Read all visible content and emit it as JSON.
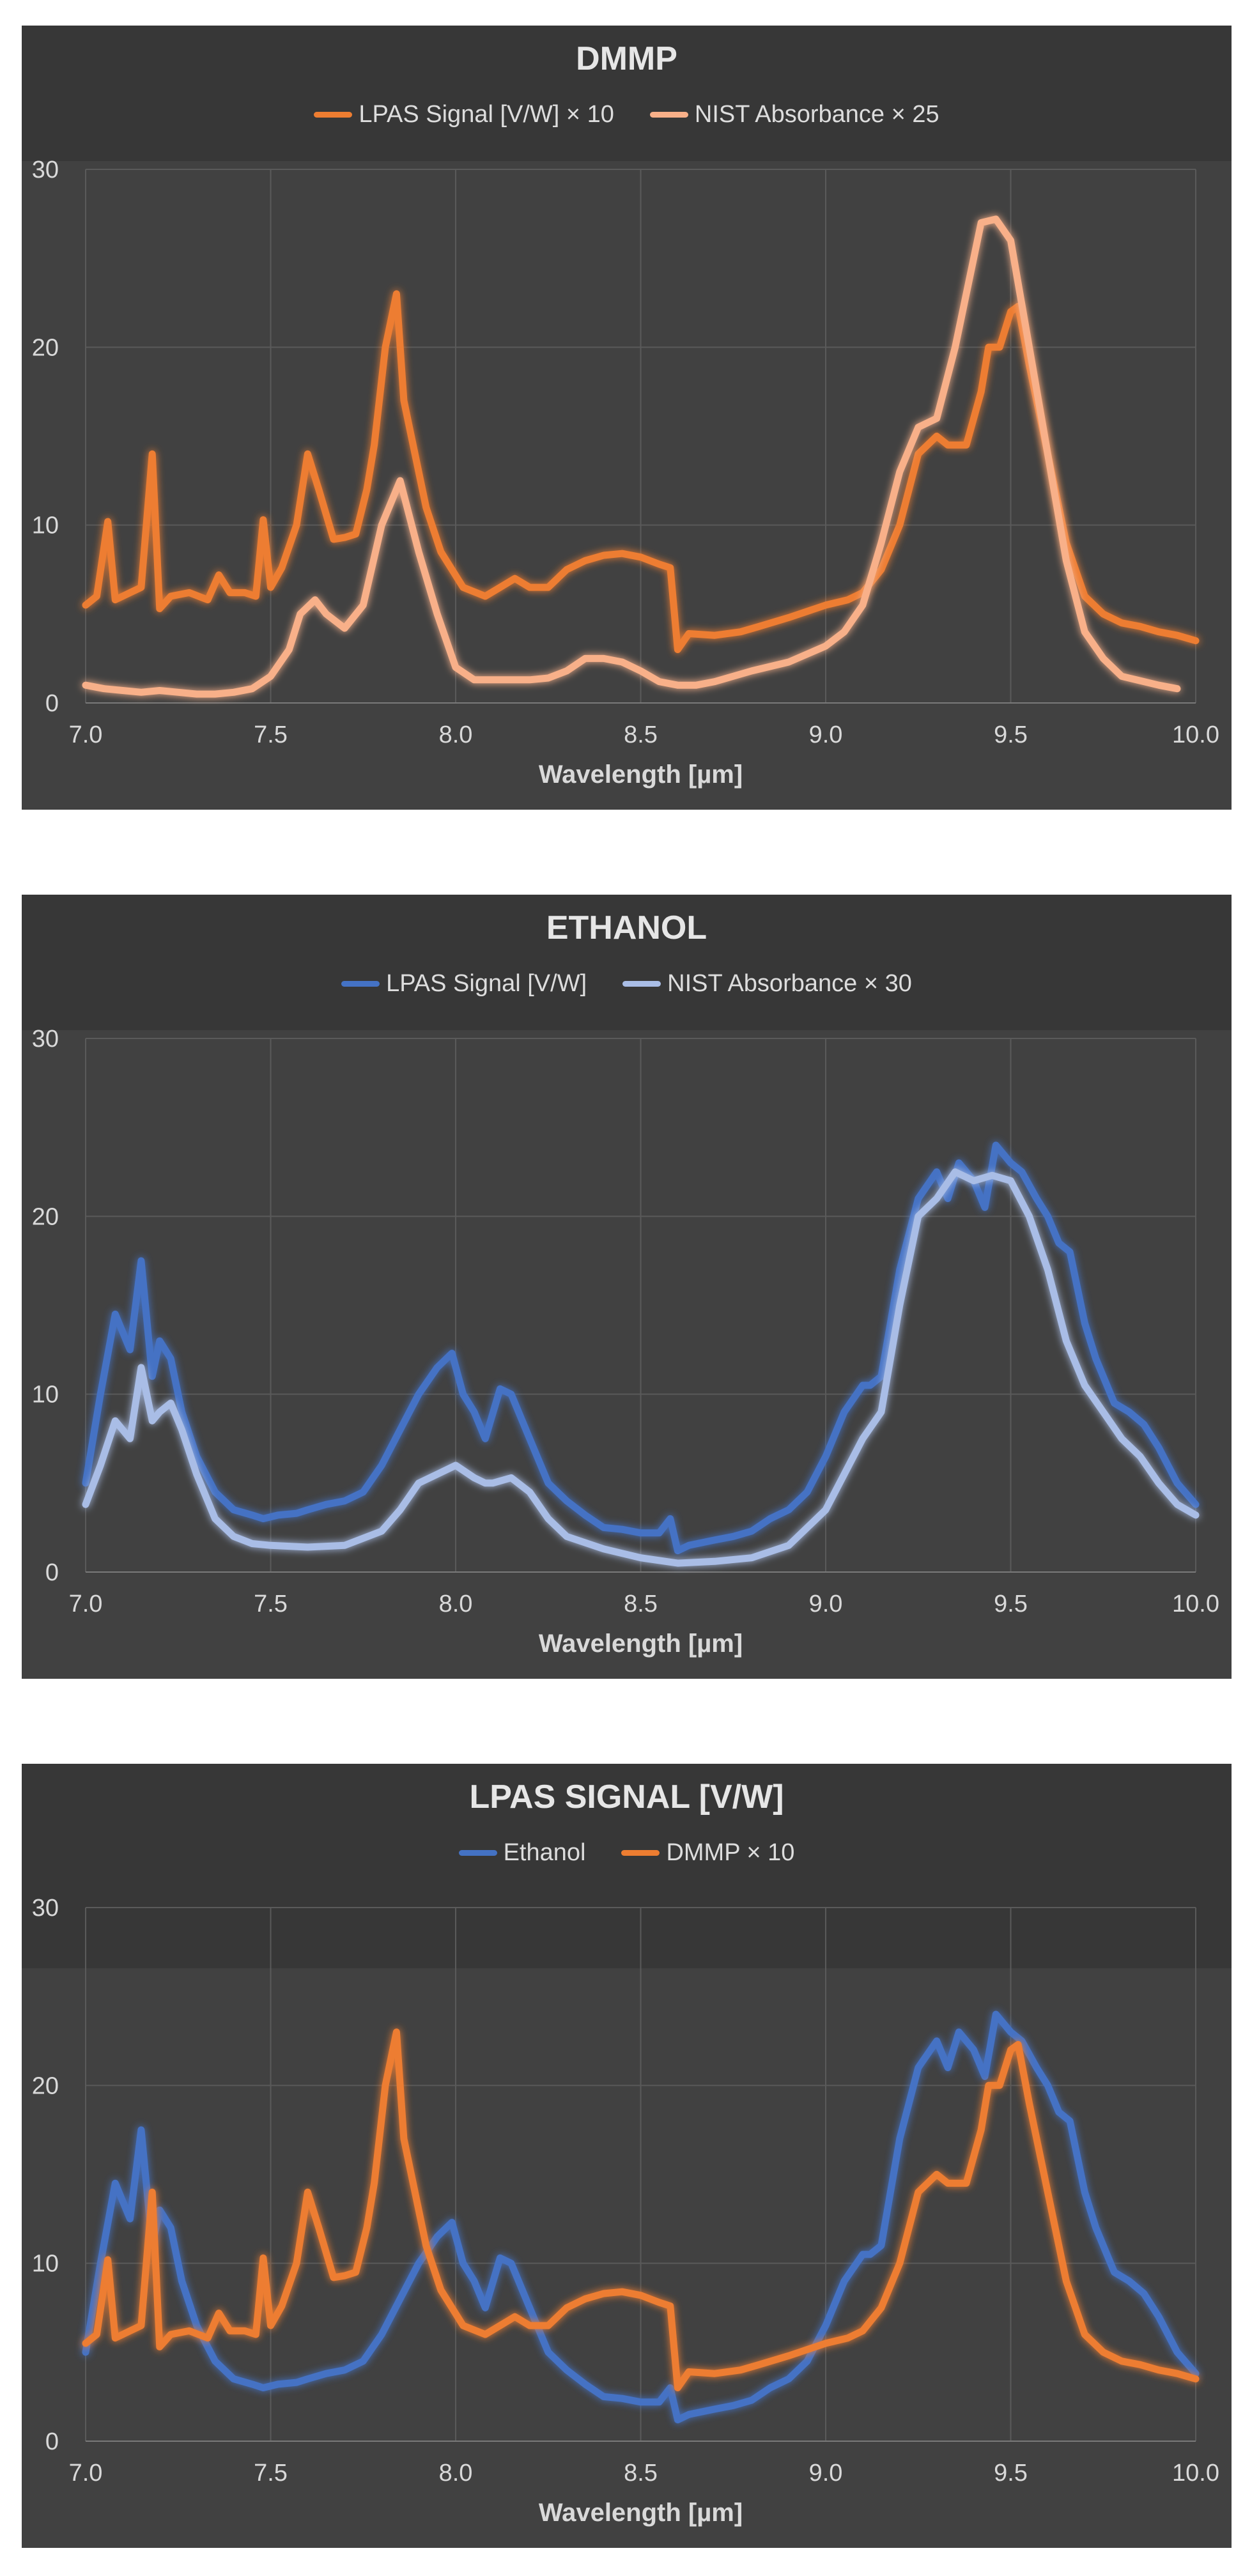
{
  "chart_data": [
    {
      "type": "line",
      "title": "DMMP",
      "xlabel": "Wavelength [µm]",
      "ylabel": "",
      "xlim": [
        7.0,
        10.0
      ],
      "ylim": [
        0,
        30
      ],
      "xticks": [
        "7.0",
        "7.5",
        "8.0",
        "8.5",
        "9.0",
        "9.5",
        "10.0"
      ],
      "yticks": [
        "0",
        "10",
        "20",
        "30"
      ],
      "grid": true,
      "legend_position": "top",
      "series": [
        {
          "name": "LPAS Signal [V/W] × 10",
          "color": "#ed7d31",
          "x": [
            7.0,
            7.03,
            7.06,
            7.08,
            7.12,
            7.15,
            7.18,
            7.2,
            7.23,
            7.28,
            7.33,
            7.36,
            7.39,
            7.43,
            7.46,
            7.48,
            7.5,
            7.53,
            7.57,
            7.6,
            7.63,
            7.67,
            7.7,
            7.73,
            7.76,
            7.78,
            7.81,
            7.84,
            7.86,
            7.88,
            7.92,
            7.96,
            8.02,
            8.08,
            8.12,
            8.16,
            8.2,
            8.25,
            8.3,
            8.35,
            8.4,
            8.45,
            8.5,
            8.55,
            8.58,
            8.6,
            8.63,
            8.7,
            8.77,
            8.82,
            8.9,
            9.0,
            9.06,
            9.1,
            9.15,
            9.2,
            9.25,
            9.3,
            9.33,
            9.38,
            9.42,
            9.44,
            9.47,
            9.5,
            9.52,
            9.55,
            9.6,
            9.65,
            9.7,
            9.75,
            9.8,
            9.85,
            9.9,
            9.95,
            10.0
          ],
          "y": [
            5.5,
            6.0,
            10.2,
            5.8,
            6.2,
            6.5,
            14.0,
            5.3,
            6.0,
            6.2,
            5.8,
            7.2,
            6.2,
            6.2,
            6.0,
            10.3,
            6.5,
            7.6,
            10.0,
            14.0,
            12.0,
            9.2,
            9.3,
            9.5,
            12.0,
            14.5,
            20.0,
            23.0,
            17.0,
            15.0,
            11.0,
            8.5,
            6.5,
            6.0,
            6.5,
            7.0,
            6.5,
            6.5,
            7.5,
            8.0,
            8.3,
            8.4,
            8.2,
            7.8,
            7.6,
            3.0,
            3.9,
            3.8,
            4.0,
            4.3,
            4.8,
            5.5,
            5.8,
            6.2,
            7.5,
            10.0,
            14.0,
            15.0,
            14.5,
            14.5,
            17.5,
            20.0,
            20.0,
            22.0,
            22.3,
            19.0,
            14.0,
            9.0,
            6.0,
            5.0,
            4.5,
            4.3,
            4.0,
            3.8,
            3.5
          ]
        },
        {
          "name": "NIST Absorbance × 25",
          "color": "#f8b089",
          "x": [
            7.0,
            7.05,
            7.1,
            7.15,
            7.2,
            7.25,
            7.3,
            7.35,
            7.4,
            7.45,
            7.5,
            7.55,
            7.58,
            7.62,
            7.65,
            7.7,
            7.75,
            7.8,
            7.85,
            7.9,
            7.95,
            8.0,
            8.05,
            8.1,
            8.2,
            8.25,
            8.3,
            8.35,
            8.4,
            8.45,
            8.5,
            8.55,
            8.6,
            8.65,
            8.7,
            8.8,
            8.9,
            9.0,
            9.05,
            9.1,
            9.15,
            9.2,
            9.25,
            9.3,
            9.35,
            9.38,
            9.42,
            9.46,
            9.5,
            9.55,
            9.6,
            9.65,
            9.7,
            9.75,
            9.8,
            9.9,
            9.95
          ],
          "y": [
            1.0,
            0.8,
            0.7,
            0.6,
            0.7,
            0.6,
            0.5,
            0.5,
            0.6,
            0.8,
            1.5,
            3.0,
            5.0,
            5.8,
            5.0,
            4.2,
            5.5,
            10.0,
            12.5,
            8.5,
            5.0,
            2.0,
            1.3,
            1.3,
            1.3,
            1.4,
            1.8,
            2.5,
            2.5,
            2.3,
            1.8,
            1.2,
            1.0,
            1.0,
            1.2,
            1.8,
            2.3,
            3.2,
            4.0,
            5.5,
            9.0,
            13.0,
            15.5,
            16.0,
            20.0,
            23.0,
            27.0,
            27.2,
            26.0,
            20.0,
            14.0,
            8.0,
            4.0,
            2.5,
            1.5,
            1.0,
            0.8
          ]
        }
      ]
    },
    {
      "type": "line",
      "title": "ETHANOL",
      "xlabel": "Wavelength [µm]",
      "ylabel": "",
      "xlim": [
        7.0,
        10.0
      ],
      "ylim": [
        0,
        30
      ],
      "xticks": [
        "7.0",
        "7.5",
        "8.0",
        "8.5",
        "9.0",
        "9.5",
        "10.0"
      ],
      "yticks": [
        "0",
        "10",
        "20",
        "30"
      ],
      "grid": true,
      "legend_position": "top",
      "series": [
        {
          "name": "LPAS Signal [V/W]",
          "color": "#4472c4",
          "x": [
            7.0,
            7.04,
            7.08,
            7.12,
            7.15,
            7.18,
            7.2,
            7.23,
            7.26,
            7.3,
            7.35,
            7.4,
            7.45,
            7.48,
            7.52,
            7.57,
            7.6,
            7.65,
            7.7,
            7.75,
            7.8,
            7.85,
            7.9,
            7.95,
            7.99,
            8.02,
            8.05,
            8.08,
            8.12,
            8.15,
            8.2,
            8.25,
            8.3,
            8.35,
            8.4,
            8.45,
            8.5,
            8.55,
            8.58,
            8.6,
            8.63,
            8.7,
            8.75,
            8.8,
            8.85,
            8.9,
            8.95,
            9.0,
            9.05,
            9.1,
            9.12,
            9.15,
            9.2,
            9.25,
            9.3,
            9.33,
            9.36,
            9.4,
            9.43,
            9.46,
            9.5,
            9.53,
            9.57,
            9.6,
            9.63,
            9.66,
            9.7,
            9.73,
            9.78,
            9.82,
            9.86,
            9.9,
            9.95,
            10.0
          ],
          "y": [
            5.0,
            10.0,
            14.5,
            12.5,
            17.5,
            11.0,
            13.0,
            12.0,
            9.0,
            6.5,
            4.5,
            3.5,
            3.2,
            3.0,
            3.2,
            3.3,
            3.5,
            3.8,
            4.0,
            4.5,
            6.0,
            8.0,
            10.0,
            11.5,
            12.3,
            10.0,
            9.0,
            7.5,
            10.3,
            10.0,
            7.5,
            5.0,
            4.0,
            3.2,
            2.5,
            2.4,
            2.2,
            2.2,
            3.0,
            1.2,
            1.5,
            1.8,
            2.0,
            2.3,
            3.0,
            3.5,
            4.5,
            6.5,
            9.0,
            10.5,
            10.5,
            11.0,
            17.0,
            21.0,
            22.5,
            21.0,
            23.0,
            22.0,
            20.5,
            24.0,
            23.0,
            22.5,
            21.0,
            20.0,
            18.5,
            18.0,
            14.0,
            12.0,
            9.5,
            9.0,
            8.3,
            7.0,
            5.0,
            3.8
          ]
        },
        {
          "name": "NIST Absorbance × 30",
          "color": "#a9bde6",
          "x": [
            7.0,
            7.04,
            7.08,
            7.12,
            7.15,
            7.18,
            7.2,
            7.23,
            7.26,
            7.3,
            7.35,
            7.4,
            7.45,
            7.5,
            7.6,
            7.7,
            7.8,
            7.85,
            7.9,
            7.95,
            8.0,
            8.05,
            8.08,
            8.1,
            8.15,
            8.2,
            8.25,
            8.3,
            8.4,
            8.5,
            8.6,
            8.7,
            8.8,
            8.9,
            9.0,
            9.05,
            9.1,
            9.15,
            9.2,
            9.25,
            9.3,
            9.35,
            9.4,
            9.45,
            9.5,
            9.55,
            9.6,
            9.65,
            9.7,
            9.75,
            9.8,
            9.85,
            9.9,
            9.95,
            10.0
          ],
          "y": [
            3.8,
            6.0,
            8.5,
            7.5,
            11.5,
            8.5,
            9.0,
            9.5,
            8.0,
            5.5,
            3.0,
            2.0,
            1.6,
            1.5,
            1.4,
            1.5,
            2.3,
            3.5,
            5.0,
            5.5,
            6.0,
            5.3,
            5.0,
            5.0,
            5.3,
            4.5,
            3.0,
            2.0,
            1.3,
            0.8,
            0.5,
            0.6,
            0.8,
            1.5,
            3.5,
            5.5,
            7.5,
            9.0,
            15.0,
            20.0,
            21.0,
            22.5,
            22.0,
            22.3,
            22.0,
            20.0,
            17.0,
            13.0,
            10.5,
            9.0,
            7.5,
            6.5,
            5.0,
            3.8,
            3.2
          ]
        }
      ]
    },
    {
      "type": "line",
      "title": "LPAS SIGNAL [V/W]",
      "xlabel": "Wavelength [µm]",
      "ylabel": "",
      "xlim": [
        7.0,
        10.0
      ],
      "ylim": [
        0,
        30
      ],
      "xticks": [
        "7.0",
        "7.5",
        "8.0",
        "8.5",
        "9.0",
        "9.5",
        "10.0"
      ],
      "yticks": [
        "0",
        "10",
        "20",
        "30"
      ],
      "grid": true,
      "legend_position": "top",
      "series": [
        {
          "name": "Ethanol",
          "color": "#4472c4",
          "x": [
            7.0,
            7.04,
            7.08,
            7.12,
            7.15,
            7.18,
            7.2,
            7.23,
            7.26,
            7.3,
            7.35,
            7.4,
            7.45,
            7.48,
            7.52,
            7.57,
            7.6,
            7.65,
            7.7,
            7.75,
            7.8,
            7.85,
            7.9,
            7.95,
            7.99,
            8.02,
            8.05,
            8.08,
            8.12,
            8.15,
            8.2,
            8.25,
            8.3,
            8.35,
            8.4,
            8.45,
            8.5,
            8.55,
            8.58,
            8.6,
            8.63,
            8.7,
            8.75,
            8.8,
            8.85,
            8.9,
            8.95,
            9.0,
            9.05,
            9.1,
            9.12,
            9.15,
            9.2,
            9.25,
            9.3,
            9.33,
            9.36,
            9.4,
            9.43,
            9.46,
            9.5,
            9.53,
            9.57,
            9.6,
            9.63,
            9.66,
            9.7,
            9.73,
            9.78,
            9.82,
            9.86,
            9.9,
            9.95,
            10.0
          ],
          "y": [
            5.0,
            10.0,
            14.5,
            12.5,
            17.5,
            11.0,
            13.0,
            12.0,
            9.0,
            6.5,
            4.5,
            3.5,
            3.2,
            3.0,
            3.2,
            3.3,
            3.5,
            3.8,
            4.0,
            4.5,
            6.0,
            8.0,
            10.0,
            11.5,
            12.3,
            10.0,
            9.0,
            7.5,
            10.3,
            10.0,
            7.5,
            5.0,
            4.0,
            3.2,
            2.5,
            2.4,
            2.2,
            2.2,
            3.0,
            1.2,
            1.5,
            1.8,
            2.0,
            2.3,
            3.0,
            3.5,
            4.5,
            6.5,
            9.0,
            10.5,
            10.5,
            11.0,
            17.0,
            21.0,
            22.5,
            21.0,
            23.0,
            22.0,
            20.5,
            24.0,
            23.0,
            22.5,
            21.0,
            20.0,
            18.5,
            18.0,
            14.0,
            12.0,
            9.5,
            9.0,
            8.3,
            7.0,
            5.0,
            3.8
          ]
        },
        {
          "name": "DMMP × 10",
          "color": "#ed7d31",
          "x": [
            7.0,
            7.03,
            7.06,
            7.08,
            7.12,
            7.15,
            7.18,
            7.2,
            7.23,
            7.28,
            7.33,
            7.36,
            7.39,
            7.43,
            7.46,
            7.48,
            7.5,
            7.53,
            7.57,
            7.6,
            7.63,
            7.67,
            7.7,
            7.73,
            7.76,
            7.78,
            7.81,
            7.84,
            7.86,
            7.88,
            7.92,
            7.96,
            8.02,
            8.08,
            8.12,
            8.16,
            8.2,
            8.25,
            8.3,
            8.35,
            8.4,
            8.45,
            8.5,
            8.55,
            8.58,
            8.6,
            8.63,
            8.7,
            8.77,
            8.82,
            8.9,
            9.0,
            9.06,
            9.1,
            9.15,
            9.2,
            9.25,
            9.3,
            9.33,
            9.38,
            9.42,
            9.44,
            9.47,
            9.5,
            9.52,
            9.55,
            9.6,
            9.65,
            9.7,
            9.75,
            9.8,
            9.85,
            9.9,
            9.95,
            10.0
          ],
          "y": [
            5.5,
            6.0,
            10.2,
            5.8,
            6.2,
            6.5,
            14.0,
            5.3,
            6.0,
            6.2,
            5.8,
            7.2,
            6.2,
            6.2,
            6.0,
            10.3,
            6.5,
            7.6,
            10.0,
            14.0,
            12.0,
            9.2,
            9.3,
            9.5,
            12.0,
            14.5,
            20.0,
            23.0,
            17.0,
            15.0,
            11.0,
            8.5,
            6.5,
            6.0,
            6.5,
            7.0,
            6.5,
            6.5,
            7.5,
            8.0,
            8.3,
            8.4,
            8.2,
            7.8,
            7.6,
            3.0,
            3.9,
            3.8,
            4.0,
            4.3,
            4.8,
            5.5,
            5.8,
            6.2,
            7.5,
            10.0,
            14.0,
            15.0,
            14.5,
            14.5,
            17.5,
            20.0,
            20.0,
            22.0,
            22.3,
            19.0,
            14.0,
            9.0,
            6.0,
            5.0,
            4.5,
            4.3,
            4.0,
            3.8,
            3.5
          ]
        }
      ]
    }
  ]
}
